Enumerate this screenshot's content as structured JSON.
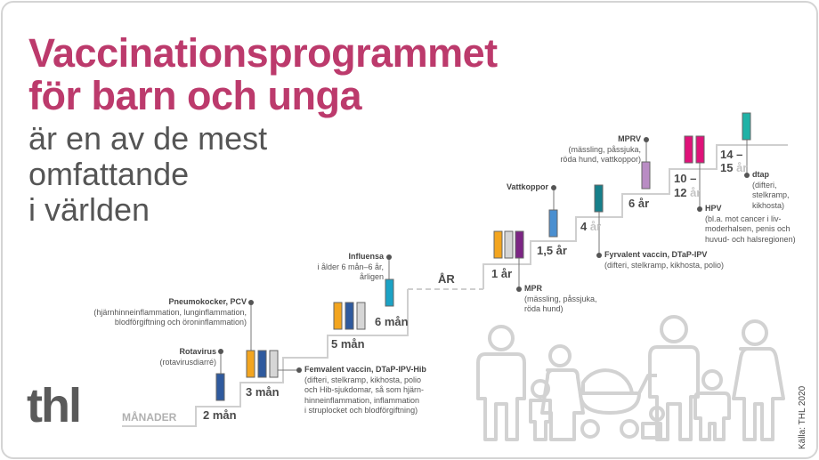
{
  "title": [
    "Vaccinationsprogrammet",
    "för barn och unga"
  ],
  "subtitle": [
    "är en av de mest",
    "omfattande",
    "i världen"
  ],
  "logo": "thl",
  "source": "Källa: THL 2020",
  "axis": {
    "months": "MÅNADER",
    "years": "ÅR"
  },
  "ages": [
    {
      "main": "2 mån",
      "light": ""
    },
    {
      "main": "3 mån",
      "light": ""
    },
    {
      "main": "5 mån",
      "light": ""
    },
    {
      "main": "6 mån",
      "light": ""
    },
    {
      "main": "1 år",
      "light": ""
    },
    {
      "main": "1,5 år",
      "light": ""
    },
    {
      "main": "4 ",
      "light": "år"
    },
    {
      "main": "6 år",
      "light": ""
    },
    {
      "main": "10 –",
      "light": ""
    },
    {
      "main": "12 ",
      "light": "år"
    },
    {
      "main": "14 –",
      "light": ""
    },
    {
      "main": "15 ",
      "light": "år"
    }
  ],
  "colors": {
    "title": "#bc3a6c",
    "rotavirus": "#2f5a9e",
    "pcv": "#f3a51f",
    "dtap_ipv_hib": "#2f5a9e",
    "pcv_gray": "#d6d6d6",
    "influenza": "#1ba2c5",
    "mpr": "#7c2584",
    "varicella": "#4a8fd0",
    "dtap_ipv": "#167f8a",
    "mprv": "#b98cc4",
    "hpv": "#df1279",
    "dtap": "#1fb2a6"
  },
  "annotations": [
    {
      "title": "Rotavirus",
      "lines": [
        "(rotavirusdiarré)"
      ]
    },
    {
      "title": "Pneumokocker, PCV",
      "lines": [
        "(hjärnhinneinflammation, lunginflammation,",
        "blodförgiftning och öroninflammation)"
      ]
    },
    {
      "title": "Femvalent vaccin, DTaP-IPV-Hib",
      "lines": [
        "(difteri, stelkramp, kikhosta, polio",
        "och Hib-sjukdomar, så som hjärn-",
        "hinneinflammation, inflammation",
        "i struplocket och blodförgiftning)"
      ]
    },
    {
      "title": "Influensa",
      "lines": [
        "i ålder 6 mån–6 år,",
        "årligen"
      ]
    },
    {
      "title": "MPR",
      "lines": [
        "(mässling, påssjuka,",
        "röda hund)"
      ]
    },
    {
      "title": "Vattkoppor",
      "lines": []
    },
    {
      "title": "Fyrvalent vaccin, DTaP-IPV",
      "lines": [
        "(difteri, stelkramp, kikhosta, polio)"
      ]
    },
    {
      "title": "MPRV",
      "lines": [
        "(mässling, påssjuka,",
        "röda hund, vattkoppor)"
      ]
    },
    {
      "title": "HPV",
      "lines": [
        "(bl.a. mot cancer i  liv-",
        "moderhalsen, penis och",
        "huvud- och halsregionen)"
      ]
    },
    {
      "title": "dtap",
      "lines": [
        "(difteri,",
        "stelkramp,",
        "kikhosta)"
      ]
    }
  ]
}
